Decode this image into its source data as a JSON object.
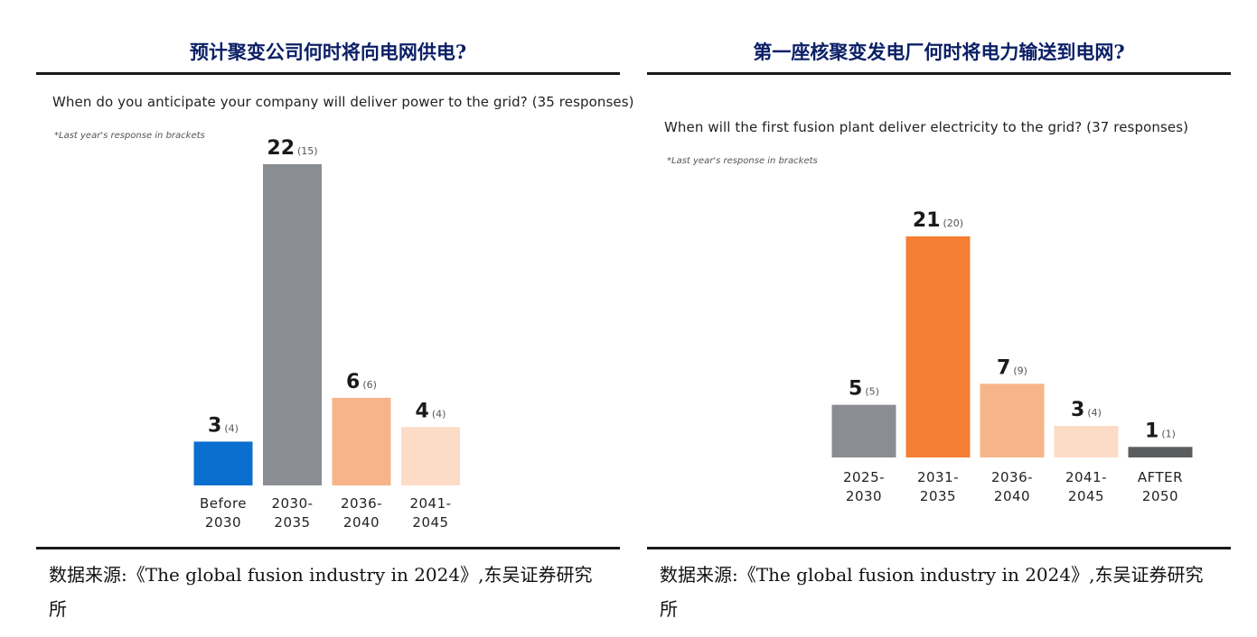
{
  "panels": [
    {
      "heading": "预计聚变公司何时将向电网供电?",
      "source": "数据来源:《The global fusion industry in 2024》,东吴证券研究所",
      "chart_data": {
        "type": "bar",
        "title": "When do you anticipate your company will deliver power to the grid? (35 responses)",
        "note": "*Last year's response in brackets",
        "categories": [
          [
            "Before",
            "2030"
          ],
          [
            "2030-",
            "2035"
          ],
          [
            "2036-",
            "2040"
          ],
          [
            "2041-",
            "2045"
          ]
        ],
        "values": [
          3,
          22,
          6,
          4
        ],
        "previous_values": [
          "(4)",
          "(15)",
          "(6)",
          "(4)"
        ],
        "value_labels": [
          "3",
          "22",
          "6",
          "4"
        ],
        "colors": [
          "#0a6fcf",
          "#8a8d91",
          "#f7b489",
          "#fcdcc6"
        ],
        "ylim": [
          0,
          22
        ],
        "grid": false
      }
    },
    {
      "heading": "第一座核聚变发电厂何时将电力输送到电网?",
      "source": "数据来源:《The global fusion industry in 2024》,东吴证券研究所",
      "chart_data": {
        "type": "bar",
        "title": "When will the first fusion plant deliver electricity to the grid? (37 responses)",
        "note": "*Last year's response in brackets",
        "categories": [
          [
            "2025-",
            "2030"
          ],
          [
            "2031-",
            "2035"
          ],
          [
            "2036-",
            "2040"
          ],
          [
            "2041-",
            "2045"
          ],
          [
            "AFTER",
            "2050"
          ]
        ],
        "values": [
          5,
          21,
          7,
          3,
          1
        ],
        "previous_values": [
          "(5)",
          "(20)",
          "(9)",
          "(4)",
          "(1)"
        ],
        "value_labels": [
          "5",
          "21",
          "7",
          "3",
          "1"
        ],
        "colors": [
          "#8a8d91",
          "#f47e33",
          "#f7b489",
          "#fcdcc6",
          "#5a5c5e"
        ],
        "ylim": [
          0,
          21
        ],
        "grid": false
      }
    }
  ]
}
